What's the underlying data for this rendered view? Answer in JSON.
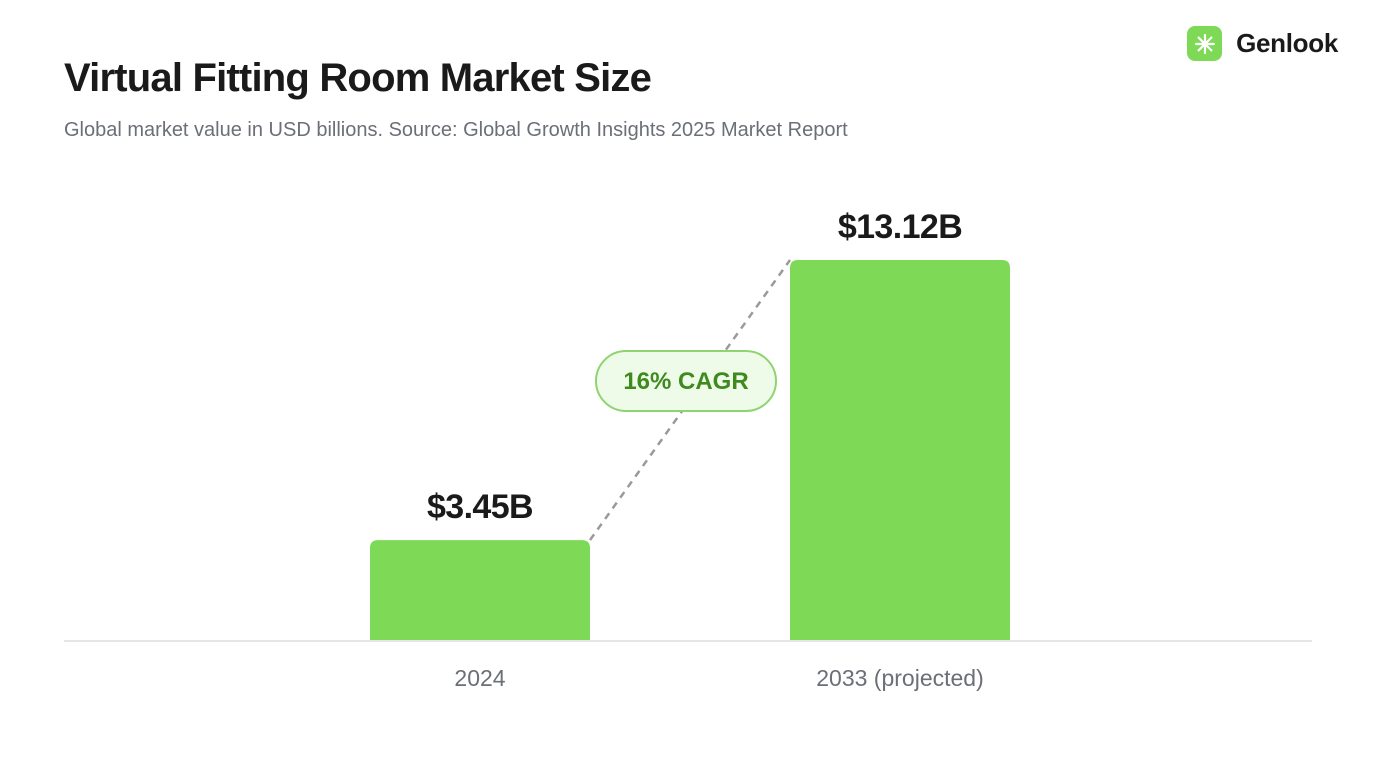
{
  "brand": {
    "name": "Genlook",
    "icon": "sparkle-icon",
    "icon_color": "#7ed957"
  },
  "chart_data": {
    "type": "bar",
    "title": "Virtual Fitting Room Market Size",
    "subtitle": "Global market value in USD billions. Source: Global Growth Insights 2025 Market Report",
    "categories": [
      "2024",
      "2033 (projected)"
    ],
    "values": [
      3.45,
      13.12
    ],
    "value_labels": [
      "$3.45B",
      "$13.12B"
    ],
    "unit": "USD billions",
    "annotation": "16% CAGR",
    "ylim": [
      0,
      13.12
    ],
    "grid": false,
    "legend": "none",
    "colors": {
      "bar": "#7ed957",
      "annotation_text": "#3f8a1f",
      "annotation_fill": "#effbe9",
      "annotation_border": "#8fd470",
      "connector": "#9a9a9a",
      "baseline": "#dddddd"
    }
  }
}
